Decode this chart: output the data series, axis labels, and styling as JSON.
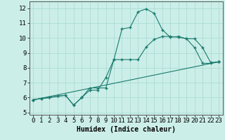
{
  "title": "",
  "xlabel": "Humidex (Indice chaleur)",
  "ylabel": "",
  "bg_color": "#cceee8",
  "line_color": "#1a7a6e",
  "grid_color": "#aaddd5",
  "xlim": [
    -0.5,
    23.5
  ],
  "ylim": [
    4.85,
    12.45
  ],
  "yticks": [
    5,
    6,
    7,
    8,
    9,
    10,
    11,
    12
  ],
  "xticks": [
    0,
    1,
    2,
    3,
    4,
    5,
    6,
    7,
    8,
    9,
    10,
    11,
    12,
    13,
    14,
    15,
    16,
    17,
    18,
    19,
    20,
    21,
    22,
    23
  ],
  "line1_x": [
    0,
    1,
    2,
    3,
    4,
    5,
    6,
    7,
    8,
    9,
    10,
    11,
    12,
    13,
    14,
    15,
    16,
    17,
    18,
    19,
    20,
    21,
    22,
    23
  ],
  "line1_y": [
    5.85,
    5.95,
    6.0,
    6.1,
    6.15,
    5.5,
    6.0,
    6.65,
    6.65,
    6.65,
    8.55,
    10.6,
    10.7,
    11.75,
    11.95,
    11.65,
    10.55,
    10.05,
    10.1,
    9.95,
    9.35,
    8.3,
    8.3,
    8.4
  ],
  "line2_x": [
    0,
    1,
    2,
    3,
    4,
    5,
    6,
    7,
    8,
    9,
    10,
    11,
    12,
    13,
    14,
    15,
    16,
    17,
    18,
    19,
    20,
    21,
    22,
    23
  ],
  "line2_y": [
    5.85,
    5.95,
    6.0,
    6.1,
    6.15,
    5.5,
    6.0,
    6.5,
    6.5,
    7.35,
    8.55,
    8.55,
    8.55,
    8.55,
    9.4,
    9.9,
    10.1,
    10.1,
    10.05,
    9.95,
    9.95,
    9.35,
    8.35,
    8.4
  ],
  "line3_x": [
    0,
    23
  ],
  "line3_y": [
    5.85,
    8.4
  ],
  "xlabel_fontsize": 7,
  "tick_fontsize": 6.5
}
